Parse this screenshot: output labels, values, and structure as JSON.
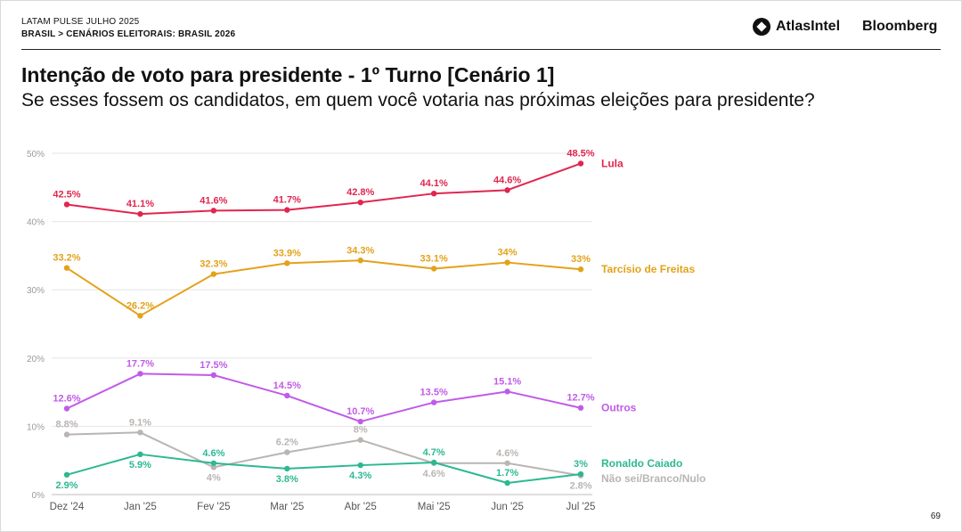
{
  "header": {
    "report": "LATAM PULSE JULHO 2025",
    "breadcrumb_a": "BRASIL",
    "breadcrumb_sep": ">",
    "breadcrumb_b": "CENÁRIOS ELEITORAIS: BRASIL 2026",
    "brand1": "AtlasIntel",
    "brand2": "Bloomberg"
  },
  "colors": {
    "lula": "#e0264f",
    "tarcisio": "#e3a21a",
    "outros": "#c05be8",
    "caiado": "#2db892",
    "naosei": "#b9b5b3",
    "grid": "#e6e6e6",
    "axis": "#9a9a9a"
  },
  "page_number": "69",
  "chart_data": {
    "type": "line",
    "title": "Intenção de voto para presidente - 1º Turno [Cenário 1]",
    "subtitle": "Se esses fossem os candidatos, em quem você votaria nas próximas eleições para presidente?",
    "x": [
      "Dez '24",
      "Jan '25",
      "Fev '25",
      "Mar '25",
      "Abr '25",
      "Mai '25",
      "Jun '25",
      "Jul '25"
    ],
    "y_ticks": [
      "0%",
      "10%",
      "20%",
      "30%",
      "40%",
      "50%"
    ],
    "ylim": [
      0,
      50
    ],
    "grid": true,
    "series": [
      {
        "key": "lula",
        "name": "Lula",
        "values": [
          42.5,
          41.1,
          41.6,
          41.7,
          42.8,
          44.1,
          44.6,
          48.5
        ],
        "labels": [
          "42.5%",
          "41.1%",
          "41.6%",
          "41.7%",
          "42.8%",
          "44.1%",
          "44.6%",
          "48.5%"
        ],
        "label_pos": [
          "above",
          "above",
          "above",
          "above",
          "above",
          "above",
          "above",
          "above"
        ]
      },
      {
        "key": "tarcisio",
        "name": "Tarcísio de Freitas",
        "values": [
          33.2,
          26.2,
          32.3,
          33.9,
          34.3,
          33.1,
          34,
          33
        ],
        "labels": [
          "33.2%",
          "26.2%",
          "32.3%",
          "33.9%",
          "34.3%",
          "33.1%",
          "34%",
          "33%"
        ],
        "label_pos": [
          "above",
          "above",
          "above",
          "above",
          "above",
          "above",
          "above",
          "above"
        ]
      },
      {
        "key": "outros",
        "name": "Outros",
        "values": [
          12.6,
          17.7,
          17.5,
          14.5,
          10.7,
          13.5,
          15.1,
          12.7
        ],
        "labels": [
          "12.6%",
          "17.7%",
          "17.5%",
          "14.5%",
          "10.7%",
          "13.5%",
          "15.1%",
          "12.7%"
        ],
        "label_pos": [
          "above",
          "above",
          "above",
          "above",
          "above",
          "above",
          "above",
          "above"
        ]
      },
      {
        "key": "caiado",
        "name": "Ronaldo Caiado",
        "values": [
          2.9,
          5.9,
          4.6,
          3.8,
          4.3,
          4.7,
          1.7,
          3
        ],
        "labels": [
          "2.9%",
          "5.9%",
          "4.6%",
          "3.8%",
          "4.3%",
          "4.7%",
          "1.7%",
          "3%"
        ],
        "label_pos": [
          "below",
          "below",
          "above",
          "below",
          "below",
          "above",
          "above",
          "above"
        ]
      },
      {
        "key": "naosei",
        "name": "Não sei/Branco/Nulo",
        "values": [
          8.8,
          9.1,
          4,
          6.2,
          8,
          4.6,
          4.6,
          2.8
        ],
        "labels": [
          "8.8%",
          "9.1%",
          "4%",
          "6.2%",
          "8%",
          "4.6%",
          "4.6%",
          "2.8%"
        ],
        "label_pos": [
          "above",
          "above",
          "below",
          "above",
          "above",
          "below",
          "above",
          "below"
        ]
      }
    ]
  }
}
